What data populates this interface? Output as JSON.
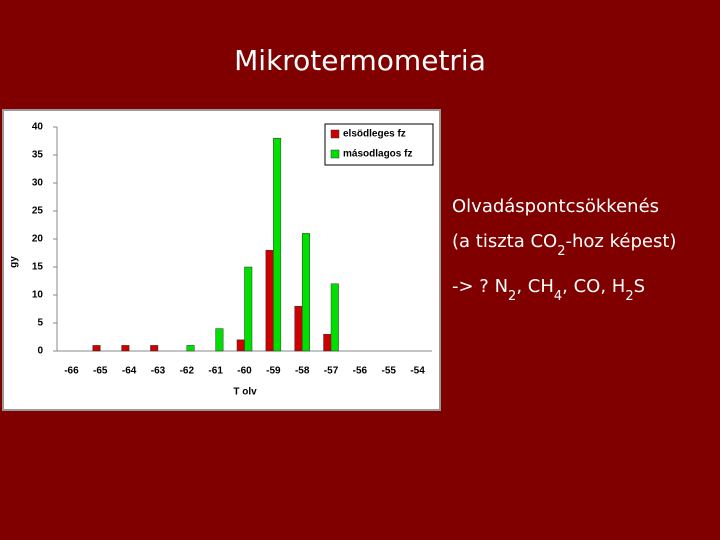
{
  "chart_data": {
    "type": "bar",
    "title": "Mikrotermometria",
    "x_label": "T olv",
    "y_label": "gy",
    "categories": [
      "-66",
      "-65",
      "-64",
      "-63",
      "-62",
      "-61",
      "-60",
      "-59",
      "-58",
      "-57",
      "-56",
      "-55",
      "-54"
    ],
    "series": [
      {
        "name": "elsödleges fz",
        "color": "#cc0000",
        "values": [
          0,
          1,
          1,
          1,
          0,
          0,
          2,
          18,
          8,
          3,
          0,
          0,
          0
        ]
      },
      {
        "name": "másodlagos fz",
        "color": "#00e000",
        "values": [
          0,
          0,
          0,
          0,
          1,
          4,
          15,
          38,
          21,
          12,
          0,
          0,
          0
        ]
      }
    ],
    "ylim": [
      0,
      40
    ],
    "yticks": [
      0,
      5,
      10,
      15,
      20,
      25,
      30,
      35,
      40
    ],
    "legend": "top-right",
    "grid": false
  },
  "notes": [
    [
      {
        "text": "Olvadáspontcsökkenés"
      }
    ],
    [
      {
        "text": "(a tiszta CO"
      },
      {
        "text": "2",
        "sub": true
      },
      {
        "text": "-hoz képest)"
      }
    ],
    [
      {
        "text": "-> ? N"
      },
      {
        "text": "2",
        "sub": true
      },
      {
        "text": ", CH"
      },
      {
        "text": "4",
        "sub": true
      },
      {
        "text": ", CO, H"
      },
      {
        "text": "2",
        "sub": true
      },
      {
        "text": "S"
      }
    ]
  ]
}
